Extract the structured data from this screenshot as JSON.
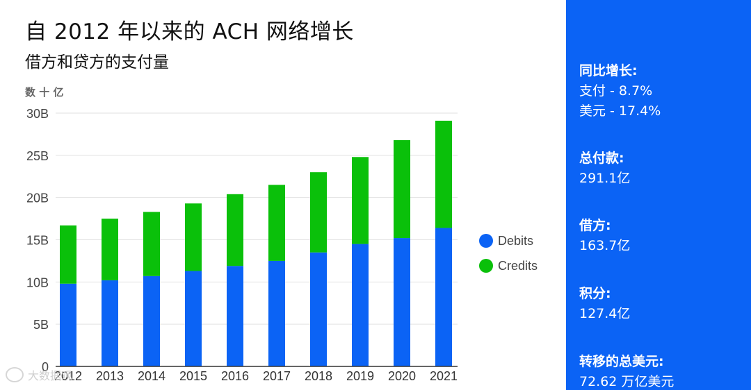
{
  "title": "自 2012 年以来的 ACH 网络增长",
  "subtitle": "借方和贷方的支付量",
  "unit_label": "数 十 亿",
  "chart_data": {
    "type": "bar",
    "stacked": true,
    "categories": [
      "2012",
      "2013",
      "2014",
      "2015",
      "2016",
      "2017",
      "2018",
      "2019",
      "2020",
      "2021"
    ],
    "series": [
      {
        "name": "Debits",
        "color": "#0b63f5",
        "values": [
          9.8,
          10.2,
          10.7,
          11.3,
          11.9,
          12.5,
          13.5,
          14.5,
          15.2,
          16.4
        ]
      },
      {
        "name": "Credits",
        "color": "#0ac00a",
        "values": [
          6.9,
          7.3,
          7.6,
          8.0,
          8.5,
          9.0,
          9.5,
          10.3,
          11.6,
          12.7
        ]
      }
    ],
    "ylim": [
      0,
      30
    ],
    "yticks": [
      0,
      5,
      10,
      15,
      20,
      25,
      30
    ],
    "ytick_labels": [
      "0",
      "5B",
      "10B",
      "15B",
      "20B",
      "25B",
      "30B"
    ],
    "grid": true,
    "legend_position": "right"
  },
  "stats": [
    {
      "title": "同比增长:",
      "lines": [
        "支付 - 8.7%",
        "美元 - 17.4%"
      ]
    },
    {
      "title": "总付款:",
      "lines": [
        "291.1亿"
      ]
    },
    {
      "title": "借方:",
      "lines": [
        "163.7亿"
      ]
    },
    {
      "title": "积分:",
      "lines": [
        "127.4亿"
      ]
    },
    {
      "title": "转移的总美元:",
      "lines": [
        "72.62 万亿美元"
      ]
    }
  ],
  "watermark": "大数据观"
}
